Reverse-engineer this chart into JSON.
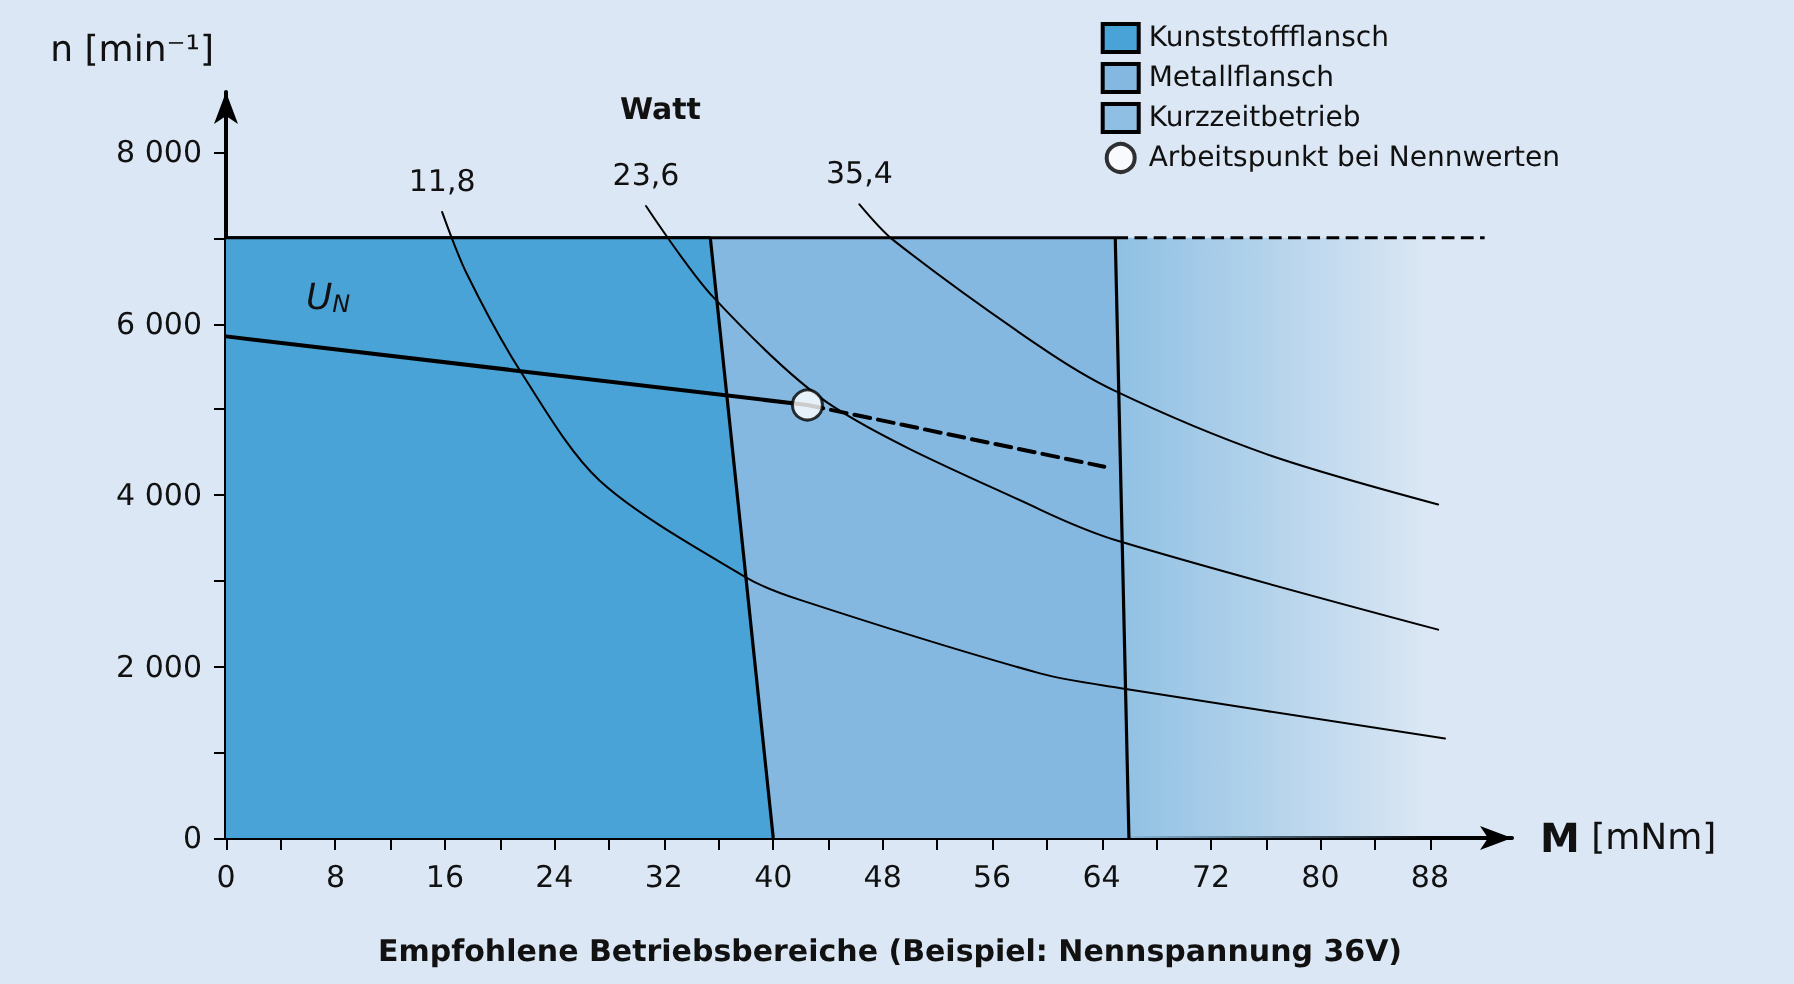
{
  "chart_data": {
    "type": "line",
    "title": "Empfohlene Betriebsbereiche (Beispiel: Nennspannung 36V)",
    "xlabel": "M [mNm]",
    "ylabel": "n [min⁻¹]",
    "annotations": [
      "Watt"
    ],
    "xlim": [
      0,
      94
    ],
    "ylim": [
      0,
      8700
    ],
    "xticks": [
      0,
      {
        "value": 4,
        "label": null
      },
      8,
      {
        "value": 12,
        "label": null
      },
      16,
      {
        "value": 20,
        "label": null
      },
      24,
      {
        "value": 28,
        "label": null
      },
      32,
      {
        "value": 36,
        "label": null
      },
      40,
      {
        "value": 44,
        "label": null
      },
      48,
      {
        "value": 52,
        "label": null
      },
      56,
      {
        "value": 60,
        "label": null
      },
      64,
      {
        "value": 68,
        "label": null
      },
      72,
      {
        "value": 76,
        "label": null
      },
      80,
      {
        "value": 84,
        "label": null
      },
      88
    ],
    "yticks": [
      0,
      {
        "value": 1000,
        "label": null
      },
      {
        "value": 2000,
        "label": "2 000"
      },
      {
        "value": 3000,
        "label": null
      },
      {
        "value": 4000,
        "label": "4 000"
      },
      {
        "value": 5000,
        "label": null
      },
      {
        "value": 6000,
        "label": "6 000"
      },
      {
        "value": 7000,
        "label": null
      },
      {
        "value": 8000,
        "label": "8 000"
      }
    ],
    "legend": "top right",
    "grid": false,
    "series": [
      {
        "name": "Kurzzeitbetrieb",
        "type": "area",
        "color": "#8fc0e3",
        "line_style": "dashed",
        "x": [
          65,
          92
        ],
        "values": [
          7000,
          7000
        ]
      },
      {
        "name": "Metallflansch",
        "type": "area",
        "color": "#84b8e0",
        "x": [
          0,
          65,
          66
        ],
        "values": [
          7000,
          7000,
          0
        ]
      },
      {
        "name": "Kunststoffflansch",
        "type": "area",
        "color": "#4aa3d6",
        "x": [
          0,
          35.4,
          40
        ],
        "values": [
          7000,
          7000,
          0
        ]
      },
      {
        "name": "11,8",
        "color": "#000000",
        "x": [
          15.8,
          17.6,
          21.5,
          27.3,
          38.0,
          41.9,
          59.5,
          65.3,
          89.1
        ],
        "values": [
          7300,
          6580,
          5450,
          4170,
          3040,
          2780,
          1920,
          1750,
          1160
        ]
      },
      {
        "name": "23,6",
        "color": "#000000",
        "x": [
          30.7,
          35.6,
          44.4,
          59.5,
          65.3,
          88.6
        ],
        "values": [
          7370,
          6310,
          5030,
          3830,
          3460,
          2430
        ]
      },
      {
        "name": "35,4",
        "color": "#000000",
        "x": [
          46.3,
          48.8,
          59.5,
          64.9,
          76.0,
          88.6
        ],
        "values": [
          7390,
          6970,
          5730,
          5220,
          4480,
          3890
        ]
      },
      {
        "name": "U$_{N}$",
        "color": "#000000",
        "x": [
          0,
          42.5
        ],
        "values": [
          5850,
          5050
        ]
      },
      {
        "color": "#000000",
        "line_style": "dashed",
        "x": [
          42.5,
          64.2
        ],
        "values": [
          5050,
          4330
        ]
      },
      {
        "name": "Arbeitspunkt bei Nennwerten",
        "type": "scatter",
        "marker": "circle",
        "color": "#ffffff",
        "x": [
          42.5
        ],
        "values": [
          5050
        ]
      }
    ]
  }
}
